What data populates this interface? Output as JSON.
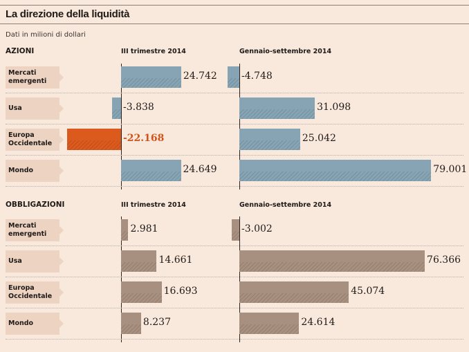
{
  "title": "La direzione della liquidità",
  "subtitle": "Dati in milioni di dollari",
  "colors": {
    "background": "#f9e9dc",
    "label_box": "#ecd3c2",
    "azioni_bar": "#86a4b4",
    "azioni_highlight": "#dc5a1e",
    "obbligazioni_bar": "#a89080",
    "highlight_text": "#d2541a"
  },
  "chart_data": [
    {
      "type": "bar",
      "title": "AZIONI",
      "orientation": "horizontal",
      "categories": [
        "Mercati emergenti",
        "Usa",
        "Europa Occidentale",
        "Mondo"
      ],
      "category_lines": [
        [
          "Mercati",
          "emergenti"
        ],
        [
          "Usa"
        ],
        [
          "Europa",
          "Occidentale"
        ],
        [
          "Mondo"
        ]
      ],
      "series": [
        {
          "name": "III trimestre 2014",
          "values": [
            24742,
            -3838,
            -22168,
            24649
          ],
          "labels": [
            "24.742",
            "-3.838",
            "-22.168",
            "24.649"
          ],
          "highlight": [
            false,
            false,
            true,
            false
          ]
        },
        {
          "name": "Gennaio-settembre 2014",
          "values": [
            -4748,
            31098,
            25042,
            79001
          ],
          "labels": [
            "-4.748",
            "31.098",
            "25.042",
            "79.001"
          ],
          "highlight": [
            false,
            false,
            false,
            false
          ]
        }
      ],
      "unit": "milioni di dollari"
    },
    {
      "type": "bar",
      "title": "OBBLIGAZIONI",
      "orientation": "horizontal",
      "categories": [
        "Mercati emergenti",
        "Usa",
        "Europa Occidentale",
        "Mondo"
      ],
      "category_lines": [
        [
          "Mercati",
          "emergenti"
        ],
        [
          "Usa"
        ],
        [
          "Europa",
          "Occidentale"
        ],
        [
          "Mondo"
        ]
      ],
      "series": [
        {
          "name": "III trimestre 2014",
          "values": [
            2981,
            14661,
            16693,
            8237
          ],
          "labels": [
            "2.981",
            "14.661",
            "16.693",
            "8.237"
          ],
          "highlight": [
            false,
            false,
            false,
            false
          ]
        },
        {
          "name": "Gennaio-settembre 2014",
          "values": [
            -3002,
            76366,
            45074,
            24614
          ],
          "labels": [
            "-3.002",
            "76.366",
            "45.074",
            "24.614"
          ],
          "highlight": [
            false,
            false,
            false,
            false
          ]
        }
      ],
      "unit": "milioni di dollari"
    }
  ]
}
